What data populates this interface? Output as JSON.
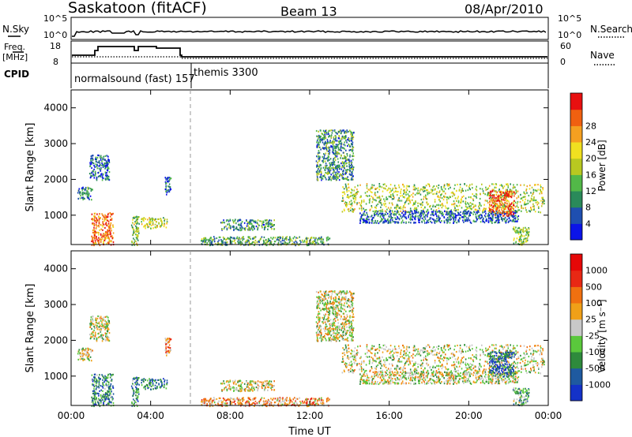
{
  "header": {
    "station": "Saskatoon (fitACF)",
    "beam": "Beam 13",
    "date": "08/Apr/2010"
  },
  "status_panels": {
    "nsky": {
      "left_label": "N.Sky",
      "right_label": "N.Search",
      "left_ticks": [
        "10^5",
        "10^0"
      ],
      "right_ticks": [
        "10^5",
        "10^0"
      ]
    },
    "freq": {
      "left_label_1": "Freq.",
      "left_label_2": "[MHz]",
      "right_label": "Nave",
      "left_ticks": [
        "18",
        "8"
      ],
      "right_ticks": [
        "60",
        "0"
      ]
    },
    "cpid": {
      "label": "CPID",
      "modes": [
        {
          "name": "normalsound (fast) 157",
          "start_hour": 0,
          "end_hour": 6
        },
        {
          "name": "themis 3300",
          "start_hour": 6,
          "end_hour": 24
        }
      ]
    }
  },
  "chart_data": [
    {
      "type": "heatmap",
      "name": "power",
      "xlabel": "",
      "ylabel": "Slant Range [km]",
      "xlim": [
        0,
        24
      ],
      "ylim": [
        180,
        4500
      ],
      "yticks": [
        "1000",
        "2000",
        "3000",
        "4000"
      ],
      "colorbar": {
        "label": "Power [dB]",
        "ticks": [
          "4",
          "8",
          "12",
          "16",
          "20",
          "24",
          "28"
        ],
        "colors": [
          "#0b14e8",
          "#1f4fb0",
          "#2a8a5a",
          "#52b848",
          "#b8c820",
          "#f0e020",
          "#f5a020",
          "#f06010",
          "#e81010"
        ]
      },
      "marker_hour": 6,
      "regions": [
        {
          "t0": 0.3,
          "t1": 1.1,
          "r0": 1450,
          "r1": 1800,
          "level": 0.25
        },
        {
          "t0": 0.9,
          "t1": 1.9,
          "r0": 2000,
          "r1": 2700,
          "level": 0.2
        },
        {
          "t0": 1.0,
          "t1": 2.1,
          "r0": 180,
          "r1": 1100,
          "level": 0.8
        },
        {
          "t0": 3.0,
          "t1": 3.4,
          "r0": 180,
          "r1": 1000,
          "level": 0.45
        },
        {
          "t0": 3.5,
          "t1": 4.8,
          "r0": 650,
          "r1": 950,
          "level": 0.5
        },
        {
          "t0": 4.7,
          "t1": 5.0,
          "r0": 1600,
          "r1": 2100,
          "level": 0.2
        },
        {
          "t0": 7.5,
          "t1": 10.2,
          "r0": 600,
          "r1": 900,
          "level": 0.3
        },
        {
          "t0": 6.5,
          "t1": 13.0,
          "r0": 180,
          "r1": 420,
          "level": 0.35
        },
        {
          "t0": 12.3,
          "t1": 14.2,
          "r0": 2000,
          "r1": 3400,
          "level": 0.3
        },
        {
          "t0": 13.6,
          "t1": 23.8,
          "r0": 1100,
          "r1": 1900,
          "level": 0.5
        },
        {
          "t0": 14.5,
          "t1": 22.5,
          "r0": 800,
          "r1": 1150,
          "level": 0.2
        },
        {
          "t0": 21.0,
          "t1": 22.3,
          "r0": 1000,
          "r1": 1700,
          "level": 0.85
        },
        {
          "t0": 22.2,
          "t1": 23.0,
          "r0": 180,
          "r1": 700,
          "level": 0.45
        }
      ]
    },
    {
      "type": "heatmap",
      "name": "velocity",
      "xlabel": "Time UT",
      "ylabel": "Slant Range [km]",
      "xlim": [
        0,
        24
      ],
      "ylim": [
        180,
        4500
      ],
      "xticks": [
        "00:00",
        "04:00",
        "08:00",
        "12:00",
        "16:00",
        "20:00",
        "00:00"
      ],
      "yticks": [
        "1000",
        "2000",
        "3000",
        "4000"
      ],
      "colorbar": {
        "label": "Velocity [m s⁻¹]",
        "ticks": [
          "1000",
          "500",
          "100",
          "25",
          "-25",
          "-100",
          "-500",
          "-1000"
        ],
        "colors": [
          "#1432c8",
          "#1f5aa0",
          "#2e8a3c",
          "#5ac83c",
          "#c8c8c8",
          "#f0a018",
          "#f07010",
          "#e82814",
          "#e60808"
        ]
      },
      "marker_hour": 6,
      "regions": [
        {
          "t0": 0.3,
          "t1": 1.1,
          "r0": 1450,
          "r1": 1800,
          "level": 0.5
        },
        {
          "t0": 0.9,
          "t1": 1.9,
          "r0": 2000,
          "r1": 2700,
          "level": 0.5
        },
        {
          "t0": 1.0,
          "t1": 2.1,
          "r0": 180,
          "r1": 1100,
          "level": 0.25
        },
        {
          "t0": 3.0,
          "t1": 3.4,
          "r0": 180,
          "r1": 1000,
          "level": 0.3
        },
        {
          "t0": 3.5,
          "t1": 4.8,
          "r0": 650,
          "r1": 950,
          "level": 0.2
        },
        {
          "t0": 4.7,
          "t1": 5.0,
          "r0": 1600,
          "r1": 2100,
          "level": 0.7
        },
        {
          "t0": 7.5,
          "t1": 10.2,
          "r0": 600,
          "r1": 900,
          "level": 0.5
        },
        {
          "t0": 6.5,
          "t1": 13.0,
          "r0": 180,
          "r1": 420,
          "level": 0.65
        },
        {
          "t0": 12.3,
          "t1": 14.2,
          "r0": 2000,
          "r1": 3400,
          "level": 0.5
        },
        {
          "t0": 13.6,
          "t1": 23.8,
          "r0": 1100,
          "r1": 1900,
          "level": 0.5
        },
        {
          "t0": 14.5,
          "t1": 22.5,
          "r0": 800,
          "r1": 1150,
          "level": 0.5
        },
        {
          "t0": 21.0,
          "t1": 22.3,
          "r0": 1000,
          "r1": 1700,
          "level": 0.15
        },
        {
          "t0": 22.2,
          "t1": 23.0,
          "r0": 180,
          "r1": 700,
          "level": 0.35
        }
      ]
    }
  ]
}
